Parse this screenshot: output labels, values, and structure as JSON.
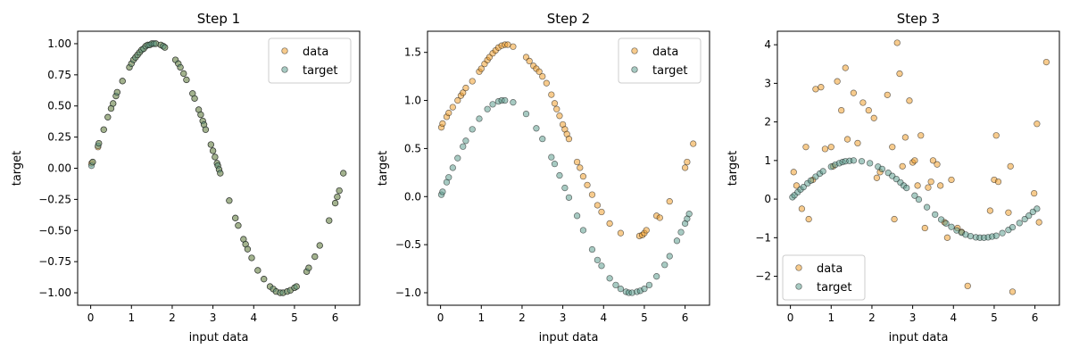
{
  "colors": {
    "data_face": "#f0a030",
    "target_face": "#5f9e8f",
    "marker_edge": "#000000"
  },
  "chart_data": [
    {
      "type": "scatter",
      "title": "Step 1",
      "xlabel": "input data",
      "ylabel": "target",
      "xlim": [
        -0.32,
        6.6
      ],
      "ylim": [
        -1.1,
        1.1
      ],
      "xticks": [
        0,
        1,
        2,
        3,
        4,
        5,
        6
      ],
      "yticks": [
        -1.0,
        -0.75,
        -0.5,
        -0.25,
        0.0,
        0.25,
        0.5,
        0.75,
        1.0
      ],
      "ytick_labels": [
        "−1.00",
        "−0.75",
        "−0.50",
        "−0.25",
        "0.00",
        "0.25",
        "0.50",
        "0.75",
        "1.00"
      ],
      "legend": "top-right",
      "series": [
        {
          "name": "data",
          "x": [
            0.02,
            0.05,
            0.18,
            0.2,
            0.32,
            0.42,
            0.5,
            0.55,
            0.62,
            0.65,
            0.78,
            0.95,
            1.0,
            1.05,
            1.1,
            1.15,
            1.2,
            1.25,
            1.3,
            1.35,
            1.4,
            1.45,
            1.5,
            1.55,
            1.6,
            1.72,
            1.78,
            1.82,
            2.08,
            2.15,
            2.2,
            2.28,
            2.35,
            2.5,
            2.55,
            2.65,
            2.7,
            2.75,
            2.78,
            2.82,
            2.95,
            3.0,
            3.05,
            3.1,
            3.12,
            3.15,
            3.18,
            3.4,
            3.55,
            3.62,
            3.75,
            3.8,
            3.85,
            3.95,
            4.1,
            4.25,
            4.4,
            4.48,
            4.55,
            4.65,
            4.72,
            4.82,
            4.9,
            5.0,
            5.05,
            5.3,
            5.35,
            5.5,
            5.62,
            5.85,
            6.0,
            6.05,
            6.1,
            6.2
          ],
          "y": [
            0.04,
            0.05,
            0.17,
            0.2,
            0.31,
            0.41,
            0.48,
            0.52,
            0.58,
            0.61,
            0.7,
            0.81,
            0.84,
            0.87,
            0.89,
            0.91,
            0.93,
            0.95,
            0.96,
            0.98,
            0.99,
            0.99,
            1.0,
            1.0,
            1.0,
            0.99,
            0.98,
            0.97,
            0.87,
            0.84,
            0.81,
            0.76,
            0.71,
            0.6,
            0.56,
            0.47,
            0.43,
            0.38,
            0.35,
            0.31,
            0.19,
            0.14,
            0.09,
            0.04,
            0.02,
            -0.01,
            -0.04,
            -0.26,
            -0.4,
            -0.46,
            -0.57,
            -0.61,
            -0.65,
            -0.72,
            -0.82,
            -0.89,
            -0.95,
            -0.97,
            -0.99,
            -1.0,
            -1.0,
            -0.99,
            -0.98,
            -0.96,
            -0.95,
            -0.83,
            -0.8,
            -0.71,
            -0.62,
            -0.42,
            -0.28,
            -0.23,
            -0.18,
            -0.04
          ]
        },
        {
          "name": "target",
          "x": [
            0.02,
            0.05,
            0.18,
            0.2,
            0.32,
            0.42,
            0.5,
            0.55,
            0.62,
            0.65,
            0.78,
            0.95,
            1.0,
            1.05,
            1.1,
            1.15,
            1.2,
            1.25,
            1.3,
            1.35,
            1.4,
            1.45,
            1.5,
            1.55,
            1.6,
            1.72,
            1.78,
            1.82,
            2.08,
            2.15,
            2.2,
            2.28,
            2.35,
            2.5,
            2.55,
            2.65,
            2.7,
            2.75,
            2.78,
            2.82,
            2.95,
            3.0,
            3.05,
            3.1,
            3.12,
            3.15,
            3.18,
            3.4,
            3.55,
            3.62,
            3.75,
            3.8,
            3.85,
            3.95,
            4.1,
            4.25,
            4.4,
            4.48,
            4.55,
            4.65,
            4.72,
            4.82,
            4.9,
            5.0,
            5.05,
            5.3,
            5.35,
            5.5,
            5.62,
            5.85,
            6.0,
            6.05,
            6.1,
            6.2
          ],
          "y": [
            0.02,
            0.05,
            0.18,
            0.2,
            0.31,
            0.41,
            0.48,
            0.52,
            0.58,
            0.61,
            0.7,
            0.81,
            0.84,
            0.87,
            0.89,
            0.91,
            0.93,
            0.95,
            0.96,
            0.98,
            0.99,
            0.99,
            1.0,
            1.0,
            1.0,
            0.99,
            0.98,
            0.97,
            0.87,
            0.84,
            0.81,
            0.76,
            0.71,
            0.6,
            0.56,
            0.47,
            0.43,
            0.38,
            0.35,
            0.31,
            0.19,
            0.14,
            0.09,
            0.04,
            0.02,
            -0.01,
            -0.04,
            -0.26,
            -0.4,
            -0.46,
            -0.57,
            -0.61,
            -0.65,
            -0.72,
            -0.82,
            -0.89,
            -0.95,
            -0.97,
            -0.99,
            -1.0,
            -1.0,
            -0.99,
            -0.98,
            -0.96,
            -0.95,
            -0.83,
            -0.8,
            -0.71,
            -0.62,
            -0.42,
            -0.28,
            -0.23,
            -0.18,
            -0.04
          ]
        }
      ]
    },
    {
      "type": "scatter",
      "title": "Step 2",
      "xlabel": "input data",
      "ylabel": "target",
      "xlim": [
        -0.32,
        6.6
      ],
      "ylim": [
        -1.13,
        1.72
      ],
      "xticks": [
        0,
        1,
        2,
        3,
        4,
        5,
        6
      ],
      "yticks": [
        -1.0,
        -0.5,
        0.0,
        0.5,
        1.0,
        1.5
      ],
      "ytick_labels": [
        "−1.0",
        "−0.5",
        "0.0",
        "0.5",
        "1.0",
        "1.5"
      ],
      "legend": "top-right",
      "series": [
        {
          "name": "data",
          "x": [
            0.02,
            0.05,
            0.15,
            0.2,
            0.3,
            0.42,
            0.5,
            0.55,
            0.62,
            0.78,
            0.95,
            1.0,
            1.08,
            1.15,
            1.2,
            1.28,
            1.35,
            1.42,
            1.5,
            1.58,
            1.65,
            1.78,
            2.1,
            2.18,
            2.28,
            2.35,
            2.42,
            2.5,
            2.6,
            2.72,
            2.8,
            2.85,
            2.92,
            3.0,
            3.05,
            3.1,
            3.15,
            3.35,
            3.42,
            3.5,
            3.6,
            3.72,
            3.85,
            3.95,
            4.15,
            4.42,
            4.88,
            4.95,
            5.0,
            5.05,
            5.3,
            5.38,
            5.62,
            6.0,
            6.05,
            6.2
          ],
          "y": [
            0.72,
            0.76,
            0.83,
            0.87,
            0.93,
            1.0,
            1.05,
            1.08,
            1.13,
            1.2,
            1.3,
            1.33,
            1.38,
            1.42,
            1.45,
            1.49,
            1.52,
            1.55,
            1.57,
            1.58,
            1.58,
            1.56,
            1.45,
            1.41,
            1.36,
            1.33,
            1.3,
            1.25,
            1.18,
            1.06,
            0.97,
            0.91,
            0.84,
            0.75,
            0.7,
            0.65,
            0.6,
            0.36,
            0.3,
            0.21,
            0.12,
            0.02,
            -0.09,
            -0.16,
            -0.28,
            -0.38,
            -0.41,
            -0.4,
            -0.38,
            -0.35,
            -0.2,
            -0.22,
            -0.05,
            0.3,
            0.36,
            0.55
          ]
        },
        {
          "name": "target",
          "x": [
            0.02,
            0.05,
            0.15,
            0.2,
            0.3,
            0.42,
            0.55,
            0.62,
            0.78,
            0.95,
            1.15,
            1.28,
            1.42,
            1.5,
            1.58,
            1.78,
            2.1,
            2.35,
            2.5,
            2.72,
            2.8,
            2.92,
            3.05,
            3.15,
            3.35,
            3.5,
            3.72,
            3.85,
            3.95,
            4.15,
            4.3,
            4.42,
            4.55,
            4.62,
            4.7,
            4.82,
            4.9,
            5.0,
            5.12,
            5.3,
            5.5,
            5.62,
            5.8,
            5.9,
            6.0,
            6.05,
            6.1
          ],
          "y": [
            0.02,
            0.05,
            0.15,
            0.2,
            0.3,
            0.4,
            0.52,
            0.58,
            0.7,
            0.81,
            0.91,
            0.96,
            0.99,
            1.0,
            1.0,
            0.98,
            0.86,
            0.71,
            0.6,
            0.41,
            0.34,
            0.22,
            0.09,
            -0.01,
            -0.2,
            -0.35,
            -0.55,
            -0.66,
            -0.72,
            -0.85,
            -0.92,
            -0.96,
            -0.99,
            -1.0,
            -1.0,
            -0.99,
            -0.98,
            -0.96,
            -0.92,
            -0.83,
            -0.71,
            -0.62,
            -0.46,
            -0.37,
            -0.28,
            -0.23,
            -0.18
          ]
        }
      ]
    },
    {
      "type": "scatter",
      "title": "Step 3",
      "xlabel": "input data",
      "ylabel": "target",
      "xlim": [
        -0.32,
        6.6
      ],
      "ylim": [
        -2.75,
        4.35
      ],
      "xticks": [
        0,
        1,
        2,
        3,
        4,
        5,
        6
      ],
      "yticks": [
        -2,
        -1,
        0,
        1,
        2,
        3,
        4
      ],
      "ytick_labels": [
        "−2",
        "−1",
        "0",
        "1",
        "2",
        "3",
        "4"
      ],
      "legend": "bottom-left",
      "series": [
        {
          "name": "data",
          "x": [
            0.08,
            0.15,
            0.28,
            0.38,
            0.45,
            0.55,
            0.62,
            0.75,
            0.85,
            1.0,
            1.05,
            1.15,
            1.25,
            1.35,
            1.4,
            1.55,
            1.65,
            1.78,
            1.92,
            2.05,
            2.12,
            2.2,
            2.38,
            2.5,
            2.55,
            2.62,
            2.68,
            2.75,
            2.82,
            2.92,
            3.0,
            3.05,
            3.12,
            3.2,
            3.3,
            3.38,
            3.45,
            3.5,
            3.6,
            3.68,
            3.78,
            3.85,
            3.95,
            4.1,
            4.2,
            4.35,
            4.9,
            5.0,
            5.05,
            5.1,
            5.35,
            5.4,
            5.45,
            5.98,
            6.05,
            6.1,
            6.28
          ],
          "y": [
            0.7,
            0.35,
            -0.25,
            1.35,
            -0.52,
            0.5,
            2.85,
            2.9,
            1.3,
            1.35,
            0.85,
            3.05,
            2.3,
            3.4,
            1.55,
            2.75,
            1.45,
            2.5,
            2.3,
            2.1,
            0.55,
            0.7,
            2.7,
            1.35,
            -0.52,
            4.05,
            3.25,
            0.85,
            1.6,
            2.55,
            0.95,
            1.0,
            0.35,
            1.65,
            -0.75,
            0.3,
            0.45,
            1.0,
            0.9,
            0.35,
            -0.6,
            -1.0,
            0.5,
            -0.75,
            -0.85,
            -2.25,
            -0.3,
            0.5,
            1.65,
            0.45,
            -0.35,
            0.85,
            -2.4,
            0.15,
            1.95,
            -0.6,
            3.55
          ]
        },
        {
          "name": "target",
          "x": [
            0.05,
            0.1,
            0.18,
            0.25,
            0.32,
            0.42,
            0.5,
            0.62,
            0.72,
            0.8,
            1.0,
            1.1,
            1.2,
            1.28,
            1.35,
            1.45,
            1.55,
            1.75,
            1.95,
            2.15,
            2.25,
            2.4,
            2.5,
            2.6,
            2.7,
            2.78,
            2.85,
            3.05,
            3.15,
            3.35,
            3.55,
            3.7,
            3.82,
            3.95,
            4.08,
            4.2,
            4.3,
            4.42,
            4.55,
            4.65,
            4.75,
            4.85,
            4.95,
            5.05,
            5.2,
            5.35,
            5.45,
            5.62,
            5.75,
            5.85,
            5.95,
            6.05
          ],
          "y": [
            0.05,
            0.1,
            0.18,
            0.25,
            0.31,
            0.41,
            0.48,
            0.58,
            0.66,
            0.72,
            0.84,
            0.89,
            0.93,
            0.96,
            0.98,
            0.99,
            1.0,
            0.98,
            0.93,
            0.84,
            0.78,
            0.68,
            0.6,
            0.52,
            0.43,
            0.35,
            0.29,
            0.09,
            -0.01,
            -0.21,
            -0.4,
            -0.53,
            -0.63,
            -0.72,
            -0.81,
            -0.87,
            -0.92,
            -0.96,
            -0.99,
            -1.0,
            -1.0,
            -0.99,
            -0.97,
            -0.95,
            -0.88,
            -0.8,
            -0.73,
            -0.62,
            -0.52,
            -0.43,
            -0.33,
            -0.25
          ]
        }
      ]
    }
  ]
}
